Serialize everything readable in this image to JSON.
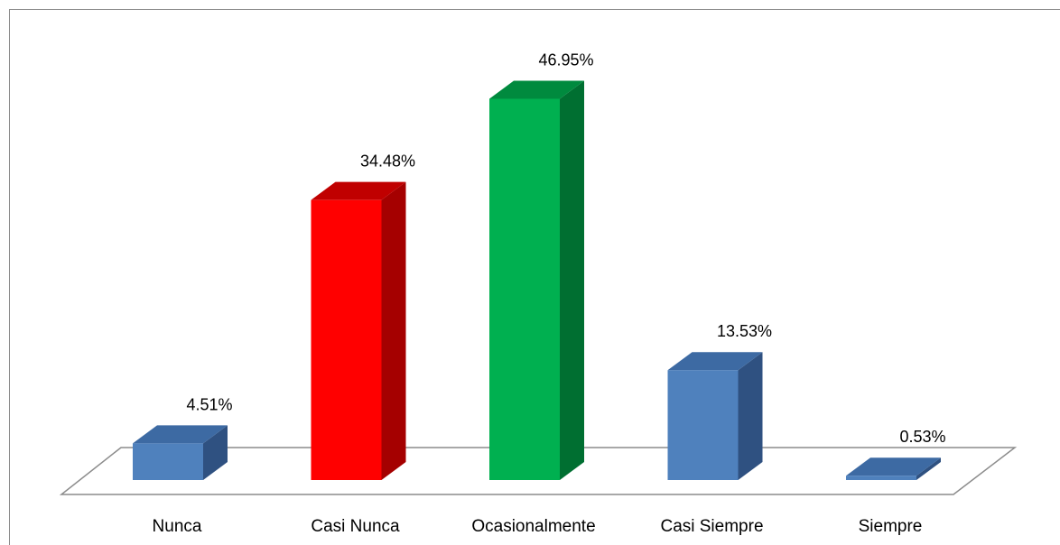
{
  "chart_data": {
    "type": "bar",
    "style": "3d-column",
    "categories": [
      "Nunca",
      "Casi Nunca",
      "Ocasionalmente",
      "Casi Siempre",
      "Siempre"
    ],
    "values": [
      4.51,
      34.48,
      46.95,
      13.53,
      0.53
    ],
    "value_labels": [
      "4.51%",
      "34.48%",
      "46.95%",
      "13.53%",
      "0.53%"
    ],
    "unit": "%",
    "title": "",
    "xlabel": "",
    "ylabel": "",
    "ylim": [
      0,
      50
    ],
    "grid": false,
    "legend": "none",
    "colors": [
      {
        "front": "#4f81bd",
        "side": "#2f5181",
        "top": "#3d6aa3"
      },
      {
        "front": "#ff0000",
        "side": "#a50000",
        "top": "#c00000"
      },
      {
        "front": "#00b050",
        "side": "#006f31",
        "top": "#008a3e"
      },
      {
        "front": "#4f81bd",
        "side": "#2f5181",
        "top": "#3d6aa3"
      },
      {
        "front": "#4f81bd",
        "side": "#2f5181",
        "top": "#3d6aa3"
      }
    ]
  }
}
